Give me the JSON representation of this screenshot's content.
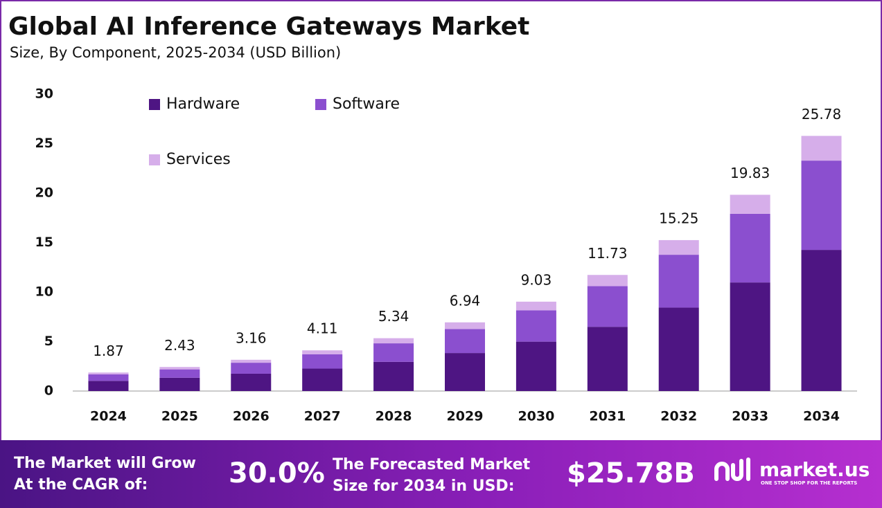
{
  "chart_data": {
    "type": "stacked-bar",
    "title": "Global AI Inference Gateways Market",
    "subtitle": "Size, By Component, 2025-2034 (USD Billion)",
    "categories": [
      "2024",
      "2025",
      "2026",
      "2027",
      "2028",
      "2029",
      "2030",
      "2031",
      "2032",
      "2033",
      "2034"
    ],
    "series": [
      {
        "name": "Hardware",
        "color": "#4e1583",
        "values": [
          1.03,
          1.34,
          1.75,
          2.27,
          2.95,
          3.84,
          4.99,
          6.49,
          8.43,
          10.97,
          14.26
        ]
      },
      {
        "name": "Software",
        "color": "#8b4fcf",
        "values": [
          0.65,
          0.85,
          1.11,
          1.44,
          1.87,
          2.43,
          3.16,
          4.11,
          5.34,
          6.94,
          9.02
        ]
      },
      {
        "name": "Services",
        "color": "#d6aeea",
        "values": [
          0.19,
          0.24,
          0.3,
          0.4,
          0.52,
          0.67,
          0.88,
          1.13,
          1.48,
          1.92,
          2.5
        ]
      }
    ],
    "totals": [
      1.87,
      2.43,
      3.16,
      4.11,
      5.34,
      6.94,
      9.03,
      11.73,
      15.25,
      19.83,
      25.78
    ],
    "ylim": [
      0,
      30
    ],
    "yticks": [
      0,
      5,
      10,
      15,
      20,
      25,
      30
    ],
    "grid": false
  },
  "footer": {
    "cagr_text": [
      "The Market will Grow",
      "At the CAGR of:"
    ],
    "cagr_value": "30.0%",
    "forecast_text": [
      "The Forecasted Market",
      "Size for 2034 in USD:"
    ],
    "forecast_value": "$25.78B",
    "brand": "market.us",
    "tagline": "ONE STOP SHOP FOR THE REPORTS"
  }
}
